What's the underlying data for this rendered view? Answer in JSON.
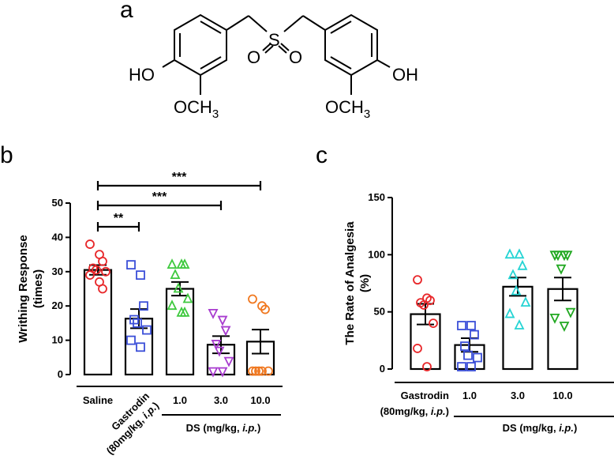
{
  "panels": {
    "a": "a",
    "b": "b",
    "c": "c"
  },
  "structure": {
    "left_oh": "HO",
    "right_oh": "OH",
    "left_och3": "OCH",
    "right_och3": "OCH",
    "subscript": "3",
    "sulfur": "S",
    "oxygen_a": "O",
    "oxygen_b": "O"
  },
  "chart_data": [
    {
      "type": "bar",
      "panel": "b",
      "ylabel_line1": "Writhing Response",
      "ylabel_line2": "(times)",
      "ylim": [
        0,
        50
      ],
      "yticks": [
        "0",
        "10",
        "20",
        "30",
        "40",
        "50"
      ],
      "categories": [
        "Saline",
        "Gastrodin",
        "1.0",
        "3.0",
        "10.0"
      ],
      "gastrodin_line1": "Gastrodin",
      "gastrodin_line2": "(80mg/kg, i.p.)",
      "group_label": "DS (mg/kg, i.p.)",
      "means": [
        30.5,
        16.3,
        25.0,
        8.7,
        9.6
      ],
      "sem": [
        1.4,
        2.8,
        2.0,
        2.5,
        3.5
      ],
      "points": [
        [
          38,
          35,
          33,
          31,
          30.5,
          30,
          29,
          27,
          25
        ],
        [
          32,
          29,
          20,
          16,
          15,
          13,
          10,
          8
        ],
        [
          32,
          32,
          32,
          29,
          25,
          22,
          20,
          18,
          18
        ],
        [
          18,
          16,
          13,
          9,
          7,
          4,
          1,
          1
        ],
        [
          22,
          20,
          19,
          1,
          1,
          1,
          1,
          1
        ]
      ],
      "point_colors": [
        "#e8272a",
        "#3b4fd8",
        "#3ec93e",
        "#a83ccf",
        "#f07820"
      ],
      "markers": [
        "circle",
        "square",
        "triangle-up",
        "triangle-down",
        "circle"
      ],
      "significance": [
        {
          "from": 0,
          "to": 1,
          "label": "**"
        },
        {
          "from": 0,
          "to": 3,
          "label": "***"
        },
        {
          "from": 0,
          "to": 4,
          "label": "***"
        }
      ]
    },
    {
      "type": "bar",
      "panel": "c",
      "ylabel_line1": "The Rate of Analgesia",
      "ylabel_line2": "(%)",
      "ylim": [
        0,
        150
      ],
      "yticks": [
        "0",
        "50",
        "100",
        "150"
      ],
      "categories": [
        "Gastrodin",
        "1.0",
        "3.0",
        "10.0"
      ],
      "gastrodin_line1": "Gastrodin",
      "gastrodin_line2": "(80mg/kg, i.p.)",
      "group_label": "DS (mg/kg, i.p.)",
      "means": [
        48,
        21,
        72,
        70
      ],
      "sem": [
        9,
        6,
        8,
        10
      ],
      "points": [
        [
          78,
          62,
          60,
          58,
          56,
          40,
          18,
          2
        ],
        [
          38,
          38,
          30,
          20,
          12,
          10,
          2,
          2
        ],
        [
          100,
          100,
          90,
          82,
          68,
          58,
          48,
          38
        ],
        [
          100,
          100,
          100,
          100,
          88,
          50,
          45,
          38
        ]
      ],
      "point_colors": [
        "#e8272a",
        "#3b4fd8",
        "#25d4d4",
        "#20a820"
      ],
      "markers": [
        "circle",
        "square",
        "triangle-up",
        "triangle-down"
      ]
    }
  ]
}
